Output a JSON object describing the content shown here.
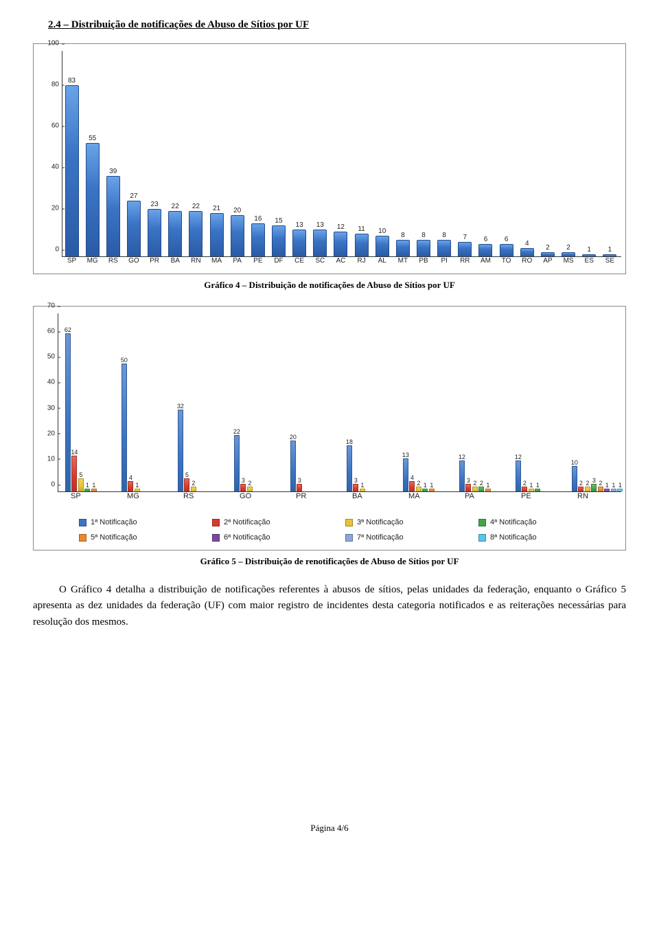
{
  "section_title": "2.4 – Distribuição de notificações de Abuso de Sítios por UF",
  "chart1": {
    "type": "bar",
    "caption": "Gráfico 4 – Distribuição de notificações de Abuso de Sítios por UF",
    "ylim": [
      0,
      100
    ],
    "ytick_step": 20,
    "bar_color_gradient": [
      "#6aa3e8",
      "#3b74c5",
      "#2a5aa5"
    ],
    "border_color": "#1f4a8a",
    "axis_color": "#333333",
    "label_fontsize": 10,
    "categories": [
      "SP",
      "MG",
      "RS",
      "GO",
      "PR",
      "BA",
      "RN",
      "MA",
      "PA",
      "PE",
      "DF",
      "CE",
      "SC",
      "AC",
      "RJ",
      "AL",
      "MT",
      "PB",
      "PI",
      "RR",
      "AM",
      "TO",
      "RO",
      "AP",
      "MS",
      "ES",
      "SE"
    ],
    "values": [
      83,
      55,
      39,
      27,
      23,
      22,
      22,
      21,
      20,
      16,
      15,
      13,
      13,
      12,
      11,
      10,
      8,
      8,
      8,
      7,
      6,
      6,
      4,
      2,
      2,
      1,
      1
    ]
  },
  "chart2": {
    "type": "grouped-bar",
    "caption": "Gráfico 5 – Distribuição de renotificações de Abuso de Sítios por UF",
    "ylim": [
      0,
      70
    ],
    "ytick_step": 10,
    "axis_color": "#333333",
    "label_fontsize": 10,
    "series": [
      {
        "label": "1ª Notificação",
        "color": "#3b74c5"
      },
      {
        "label": "2ª Notificação",
        "color": "#d83a2b"
      },
      {
        "label": "3ª Notificação",
        "color": "#e8c430"
      },
      {
        "label": "4ª Notificação",
        "color": "#3fa648"
      },
      {
        "label": "5ª Notificação",
        "color": "#e88b2e"
      },
      {
        "label": "6ª Notificação",
        "color": "#7b4aa0"
      },
      {
        "label": "7ª Notificação",
        "color": "#8ca8d8"
      },
      {
        "label": "8ª Notificação",
        "color": "#5cc6e8"
      }
    ],
    "categories": [
      "SP",
      "MG",
      "RS",
      "GO",
      "PR",
      "BA",
      "MA",
      "PA",
      "PE",
      "RN"
    ],
    "data": [
      [
        62,
        14,
        5,
        1,
        1,
        null,
        null,
        null
      ],
      [
        50,
        4,
        1,
        null,
        null,
        null,
        null,
        null
      ],
      [
        32,
        5,
        2,
        null,
        null,
        null,
        null,
        null
      ],
      [
        22,
        3,
        2,
        null,
        null,
        null,
        null,
        null
      ],
      [
        20,
        3,
        null,
        null,
        null,
        null,
        null,
        null
      ],
      [
        18,
        3,
        1,
        null,
        null,
        null,
        null,
        null
      ],
      [
        13,
        4,
        2,
        1,
        1,
        null,
        null,
        null
      ],
      [
        12,
        3,
        2,
        2,
        1,
        null,
        null,
        null
      ],
      [
        12,
        2,
        1,
        1,
        null,
        null,
        null,
        null
      ],
      [
        10,
        2,
        2,
        3,
        2,
        1,
        1,
        1
      ]
    ]
  },
  "paragraph": "O Gráfico 4 detalha a distribuição de notificações referentes à abusos de sítios, pelas unidades da federação, enquanto o Gráfico 5 apresenta as dez unidades da federação (UF) com maior registro de incidentes desta categoria notificados e as reiterações necessárias para resolução dos mesmos.",
  "footer": "Página 4/6"
}
